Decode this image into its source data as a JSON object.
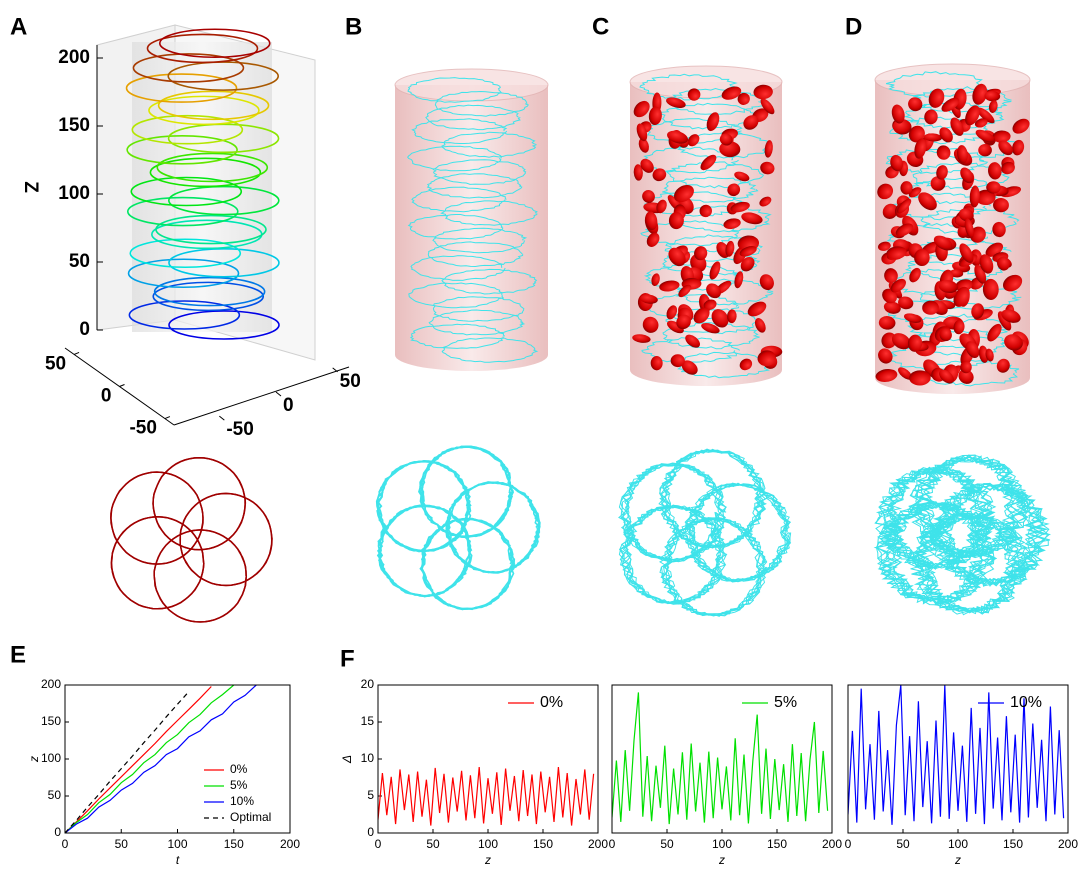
{
  "panels": [
    "A",
    "B",
    "C",
    "D",
    "E",
    "F"
  ],
  "panel_a": {
    "zlabel": "Z",
    "zlim": [
      0,
      200
    ],
    "zticks": [
      0,
      50,
      100,
      150,
      200
    ],
    "xlim": [
      -60,
      60
    ],
    "xticks": [
      50,
      0,
      -50
    ],
    "ylim": [
      -60,
      60
    ],
    "yticks": [
      50,
      0,
      -50
    ]
  },
  "chart_data": [
    {
      "type": "line",
      "xlabel": "t",
      "ylabel": "z",
      "xlim": [
        0,
        200
      ],
      "ylim": [
        0,
        200
      ],
      "xticks": [
        0,
        50,
        100,
        150,
        200
      ],
      "yticks": [
        0,
        50,
        100,
        150,
        200
      ],
      "legend": "lower right",
      "x": [
        0,
        10,
        20,
        30,
        40,
        50,
        60,
        70,
        80,
        90,
        100,
        110,
        120,
        130,
        140,
        150,
        160,
        170
      ],
      "series": [
        {
          "name": "0%",
          "color": "#ff0000",
          "dash": false,
          "values": [
            0,
            15,
            30,
            46,
            61,
            76,
            91,
            106,
            121,
            137,
            152,
            167,
            182,
            198,
            null,
            null,
            null,
            null
          ]
        },
        {
          "name": "5%",
          "color": "#00e000",
          "dash": false,
          "values": [
            0,
            14,
            25,
            41,
            52,
            68,
            79,
            95,
            106,
            122,
            133,
            149,
            160,
            176,
            187,
            200,
            null,
            null
          ]
        },
        {
          "name": "10%",
          "color": "#0000ff",
          "dash": false,
          "values": [
            0,
            12,
            20,
            35,
            44,
            58,
            67,
            82,
            91,
            106,
            114,
            130,
            138,
            153,
            161,
            177,
            186,
            200
          ]
        },
        {
          "name": "Optimal",
          "color": "#000000",
          "dash": true,
          "values": [
            0,
            17,
            35,
            52,
            70,
            87,
            104,
            122,
            139,
            157,
            174,
            191,
            null,
            null,
            null,
            null,
            null,
            null
          ]
        }
      ]
    },
    {
      "type": "line",
      "xlabel": "z",
      "ylabel": "Δ",
      "xlim": [
        0,
        200
      ],
      "ylim": [
        0,
        20
      ],
      "xticks": [
        0,
        50,
        100,
        150,
        200
      ],
      "yticks": [
        0,
        5,
        10,
        15,
        20
      ],
      "legend": "upper right",
      "x": [
        0,
        4,
        8,
        12,
        16,
        20,
        24,
        28,
        32,
        36,
        40,
        44,
        48,
        52,
        56,
        60,
        64,
        68,
        72,
        76,
        80,
        84,
        88,
        92,
        96,
        100,
        104,
        108,
        112,
        116,
        120,
        124,
        128,
        132,
        136,
        140,
        144,
        148,
        152,
        156,
        160,
        164,
        168,
        172,
        176,
        180,
        184,
        188,
        192,
        196
      ],
      "series": [
        {
          "name": "0%",
          "color": "#ff0000",
          "dash": false,
          "values": [
            1.8,
            8.1,
            2.4,
            7.6,
            1.2,
            8.6,
            3.1,
            7.9,
            1.5,
            8.3,
            2.2,
            7.2,
            1.0,
            8.8,
            2.7,
            8.0,
            1.4,
            7.5,
            2.9,
            8.4,
            1.7,
            7.8,
            2.0,
            8.9,
            1.3,
            7.4,
            2.6,
            8.2,
            1.1,
            8.7,
            3.0,
            7.7,
            1.6,
            8.5,
            2.3,
            7.9,
            1.2,
            8.3,
            2.8,
            7.6,
            1.5,
            8.9,
            2.1,
            8.1,
            1.0,
            7.3,
            2.5,
            8.6,
            1.8,
            8.0
          ]
        }
      ]
    },
    {
      "type": "line",
      "xlabel": "z",
      "xlim": [
        0,
        200
      ],
      "ylim": [
        0,
        20
      ],
      "xticks": [
        0,
        50,
        100,
        150,
        200
      ],
      "legend": "upper right",
      "x": [
        0,
        4,
        8,
        12,
        16,
        20,
        24,
        28,
        32,
        36,
        40,
        44,
        48,
        52,
        56,
        60,
        64,
        68,
        72,
        76,
        80,
        84,
        88,
        92,
        96,
        100,
        104,
        108,
        112,
        116,
        120,
        124,
        128,
        132,
        136,
        140,
        144,
        148,
        152,
        156,
        160,
        164,
        168,
        172,
        176,
        180,
        184,
        188,
        192,
        196
      ],
      "series": [
        {
          "name": "5%",
          "color": "#00e000",
          "dash": false,
          "values": [
            2.1,
            9.8,
            1.5,
            11.2,
            3.0,
            12.5,
            19.0,
            2.2,
            10.4,
            1.6,
            9.1,
            3.4,
            11.8,
            1.2,
            8.7,
            2.5,
            10.9,
            1.8,
            12.1,
            2.9,
            9.5,
            1.4,
            11.0,
            2.0,
            10.2,
            3.2,
            9.0,
            1.7,
            12.8,
            2.4,
            10.6,
            1.3,
            9.7,
            16.0,
            2.6,
            11.4,
            1.9,
            10.0,
            3.1,
            9.3,
            1.5,
            12.0,
            2.3,
            10.8,
            1.6,
            9.9,
            15.0,
            2.7,
            11.1,
            3.0
          ]
        }
      ]
    },
    {
      "type": "line",
      "xlabel": "z",
      "xlim": [
        0,
        200
      ],
      "ylim": [
        0,
        20
      ],
      "xticks": [
        0,
        50,
        100,
        150,
        200
      ],
      "legend": "upper right",
      "x": [
        0,
        4,
        8,
        12,
        16,
        20,
        24,
        28,
        32,
        36,
        40,
        44,
        48,
        52,
        56,
        60,
        64,
        68,
        72,
        76,
        80,
        84,
        88,
        92,
        96,
        100,
        104,
        108,
        112,
        116,
        120,
        124,
        128,
        132,
        136,
        140,
        144,
        148,
        152,
        156,
        160,
        164,
        168,
        172,
        176,
        180,
        184,
        188,
        192,
        196
      ],
      "series": [
        {
          "name": "10%",
          "color": "#0000ff",
          "dash": false,
          "values": [
            2.5,
            13.8,
            1.4,
            19.5,
            3.2,
            12.0,
            1.8,
            16.5,
            2.9,
            11.2,
            1.1,
            14.6,
            20.0,
            2.4,
            13.1,
            1.6,
            17.8,
            3.5,
            12.4,
            1.3,
            15.2,
            2.2,
            20.0,
            1.9,
            13.6,
            3.0,
            11.8,
            1.5,
            16.9,
            2.6,
            14.2,
            1.2,
            19.0,
            3.3,
            12.9,
            1.7,
            15.8,
            2.8,
            13.3,
            1.4,
            18.2,
            2.1,
            14.8,
            3.4,
            12.6,
            1.6,
            17.1,
            2.5,
            13.9,
            2.0
          ]
        }
      ]
    }
  ]
}
